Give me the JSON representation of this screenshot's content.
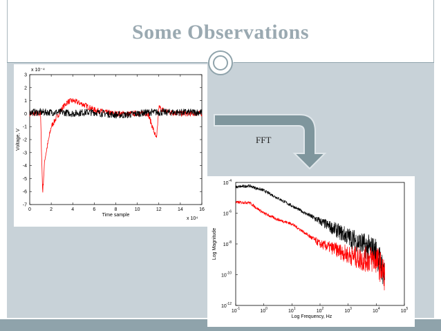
{
  "slide": {
    "title": "Some Observations",
    "arrow_label": "FFT"
  },
  "colors": {
    "title": "#9aa9b1",
    "background": "#c8d2d8",
    "accent": "#8fa3ab",
    "arrow": "#7f969d",
    "series_red": "#ff0000",
    "series_black": "#000000"
  },
  "chart_data": [
    {
      "type": "line",
      "title": "",
      "xlabel": "Time sample",
      "ylabel": "Voltage, V",
      "x_multiplier": "x 10⁴",
      "y_multiplier": "x 10⁻⁴",
      "xlim": [
        0,
        16
      ],
      "ylim": [
        -7,
        3
      ],
      "x_ticks": [
        "0",
        "2",
        "4",
        "6",
        "8",
        "10",
        "12",
        "14",
        "16"
      ],
      "y_ticks": [
        "3",
        "2",
        "1",
        "0",
        "-1",
        "-2",
        "-3",
        "-4",
        "-5",
        "-6",
        "-7"
      ],
      "series": [
        {
          "color": "#ff0000",
          "x": [
            0,
            1,
            1.2,
            1.4,
            2,
            3,
            3.5,
            4,
            5,
            6,
            7,
            8,
            9,
            10,
            11,
            11.8,
            12,
            12.3,
            13,
            14,
            15,
            16
          ],
          "y": [
            0,
            0,
            -6.1,
            -3.5,
            -1.0,
            0.4,
            0.9,
            1.0,
            0.7,
            0.3,
            0.1,
            0.0,
            0.0,
            0.0,
            0.0,
            -2.0,
            0.5,
            0.3,
            0.1,
            0.0,
            0.0,
            0.0
          ]
        },
        {
          "color": "#000000",
          "x": [
            0,
            1,
            2,
            3,
            4,
            5,
            6,
            7,
            8,
            9,
            10,
            11,
            12,
            13,
            14,
            15,
            16
          ],
          "y": [
            0.1,
            0.1,
            0.1,
            0.1,
            0.0,
            0.1,
            0.1,
            0.0,
            -0.1,
            -0.1,
            0.0,
            0.1,
            0.1,
            0.1,
            0.1,
            0.1,
            0.1
          ]
        }
      ]
    },
    {
      "type": "line",
      "title": "",
      "xlabel": "Log Frequency, Hz",
      "ylabel": "Log Magnitude",
      "xscale": "log",
      "yscale": "log",
      "xlim": [
        0.1,
        100000
      ],
      "ylim": [
        1e-12,
        0.0001
      ],
      "x_ticks": [
        {
          "base": "10",
          "exp": "-1"
        },
        {
          "base": "10",
          "exp": "0"
        },
        {
          "base": "10",
          "exp": "1"
        },
        {
          "base": "10",
          "exp": "2"
        },
        {
          "base": "10",
          "exp": "3"
        },
        {
          "base": "10",
          "exp": "4"
        },
        {
          "base": "10",
          "exp": "5"
        }
      ],
      "y_ticks": [
        {
          "base": "10",
          "exp": "-4"
        },
        {
          "base": "10",
          "exp": "-6"
        },
        {
          "base": "10",
          "exp": "-8"
        },
        {
          "base": "10",
          "exp": "-10"
        },
        {
          "base": "10",
          "exp": "-12"
        }
      ],
      "series": [
        {
          "color": "#000000",
          "x": [
            0.1,
            0.3,
            1,
            3,
            10,
            30,
            100,
            300,
            1000,
            3000,
            10000,
            20000
          ],
          "y": [
            5e-05,
            6e-05,
            3e-05,
            1e-05,
            3e-06,
            1e-06,
            3e-07,
            1e-07,
            3e-08,
            1e-08,
            3e-09,
            1e-10
          ]
        },
        {
          "color": "#ff0000",
          "x": [
            0.1,
            0.3,
            1,
            3,
            10,
            30,
            100,
            300,
            1000,
            3000,
            10000,
            20000
          ],
          "y": [
            5e-06,
            5e-06,
            1e-06,
            4e-07,
            2e-07,
            5e-08,
            1e-08,
            5e-09,
            2e-09,
            1e-09,
            1e-09,
            1e-10
          ]
        }
      ]
    }
  ]
}
